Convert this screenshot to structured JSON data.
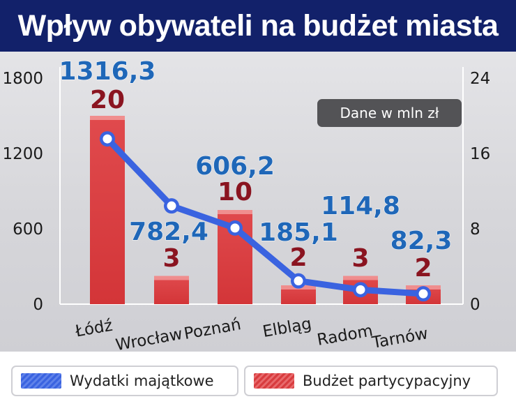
{
  "title": "Wpływ obywateli na budżet miasta",
  "unit_note": "Dane w mln zł",
  "colors": {
    "title_bg": "#12216a",
    "line": "#3a63e0",
    "line_labels": "#1f67b8",
    "bars": "#d83c3f",
    "bar_labels": "#8a1420"
  },
  "chart_data": {
    "type": "bar+line",
    "categories": [
      "Łódź",
      "Wrocław",
      "Poznań",
      "Elbląg",
      "Radom",
      "Tarnów"
    ],
    "series": [
      {
        "name": "Wydatki majątkowe",
        "type": "line",
        "axis": "left",
        "values": [
          1316.3,
          782.4,
          606.2,
          185.1,
          114.8,
          82.3
        ],
        "labels": [
          "1316,3",
          "782,4",
          "606,2",
          "185,1",
          "114,8",
          "82,3"
        ]
      },
      {
        "name": "Budżet partycypacyjny",
        "type": "bar",
        "axis": "right",
        "values": [
          20,
          3,
          10,
          2,
          3,
          2
        ],
        "labels": [
          "20",
          "3",
          "10",
          "2",
          "3",
          "2"
        ]
      }
    ],
    "y_left": {
      "ticks": [
        "0",
        "600",
        "1200",
        "1800"
      ],
      "range": [
        0,
        1800
      ]
    },
    "y_right": {
      "ticks": [
        "0",
        "8",
        "16",
        "24"
      ],
      "range": [
        0,
        24
      ]
    },
    "legend_position": "bottom"
  }
}
